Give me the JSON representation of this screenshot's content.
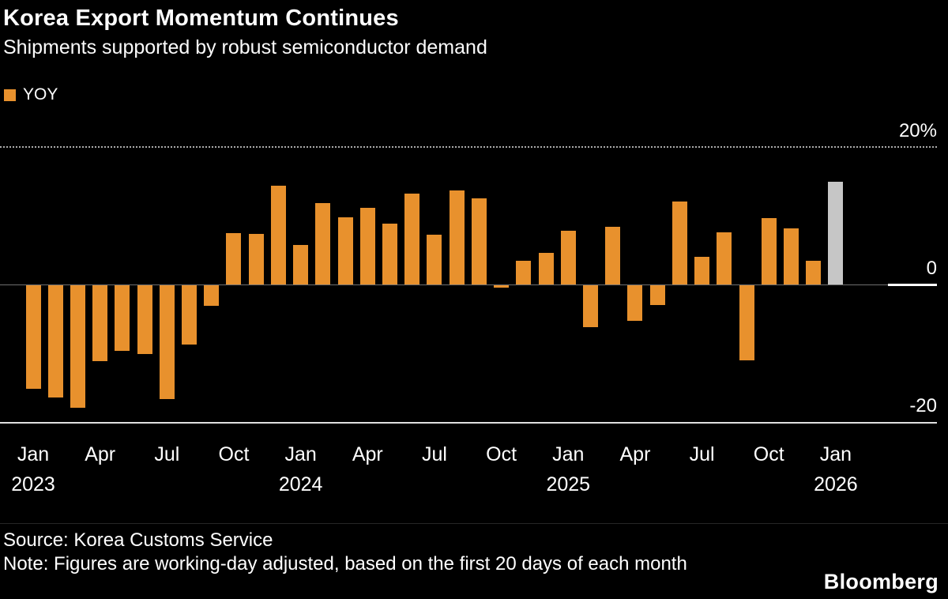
{
  "chart_data": {
    "type": "bar",
    "title": "Korea Export Momentum Continues",
    "subtitle": "Shipments supported by robust semiconductor demand",
    "legend_label": "YOY",
    "legend_position": "top-left",
    "series_color": "#E8912D",
    "highlight_color": "#C6C6C6",
    "highlight_index": 36,
    "grid": "horizontal dotted gridline at 20%, solid gray zero line, solid bottom axis at -20",
    "ylim": [
      -20,
      24
    ],
    "yticks": [
      20,
      0,
      -20
    ],
    "ytick_labels": [
      "20%",
      "0",
      "-20"
    ],
    "unit": "%",
    "categories": [
      "Jan 2023",
      "Feb 2023",
      "Mar 2023",
      "Apr 2023",
      "May 2023",
      "Jun 2023",
      "Jul 2023",
      "Aug 2023",
      "Sep 2023",
      "Oct 2023",
      "Nov 2023",
      "Dec 2023",
      "Jan 2024",
      "Feb 2024",
      "Mar 2024",
      "Apr 2024",
      "May 2024",
      "Jun 2024",
      "Jul 2024",
      "Aug 2024",
      "Sep 2024",
      "Oct 2024",
      "Nov 2024",
      "Dec 2024",
      "Jan 2025",
      "Feb 2025",
      "Mar 2025",
      "Apr 2025",
      "May 2025",
      "Jun 2025",
      "Jul 2025",
      "Aug 2025",
      "Sep 2025",
      "Oct 2025",
      "Nov 2025",
      "Dec 2025",
      "Jan 2026"
    ],
    "values": [
      -15.0,
      -16.3,
      -17.8,
      -11.0,
      -9.5,
      -10.0,
      -16.5,
      -8.6,
      -3.0,
      7.5,
      7.4,
      14.4,
      5.7,
      11.8,
      9.8,
      11.1,
      8.9,
      13.2,
      7.2,
      13.7,
      12.5,
      -0.3,
      3.4,
      4.6,
      7.8,
      -6.1,
      8.4,
      -5.2,
      -2.9,
      12.1,
      4.0,
      7.6,
      -10.9,
      9.7,
      8.2,
      3.4,
      14.9
    ],
    "xtick_indices": [
      0,
      3,
      6,
      9,
      12,
      15,
      18,
      21,
      24,
      27,
      30,
      33,
      36
    ],
    "xtick_labels": [
      "Jan",
      "Apr",
      "Jul",
      "Oct",
      "Jan",
      "Apr",
      "Jul",
      "Oct",
      "Jan",
      "Apr",
      "Jul",
      "Oct",
      "Jan"
    ],
    "year_labels": [
      {
        "index": 0,
        "label": "2023"
      },
      {
        "index": 12,
        "label": "2024"
      },
      {
        "index": 24,
        "label": "2025"
      },
      {
        "index": 36,
        "label": "2026"
      }
    ]
  },
  "footer": {
    "source": "Source: Korea Customs Service",
    "note": "Note: Figures are working-day adjusted, based on the first 20 days of each month",
    "brand": "Bloomberg"
  }
}
